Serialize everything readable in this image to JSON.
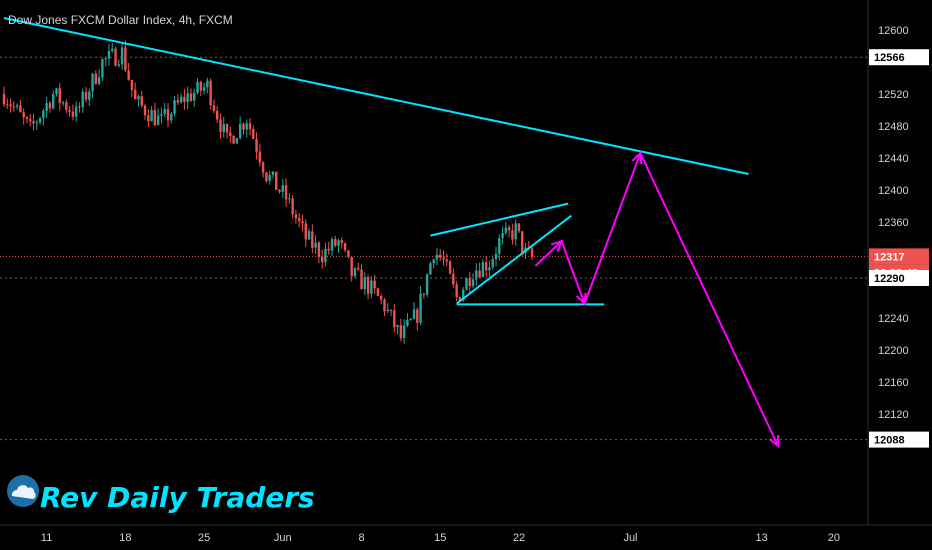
{
  "chart_data": {
    "type": "candlestick",
    "title": "Dow Jones FXCM Dollar Index, 4h, FXCM",
    "brand": "Rev Daily Traders",
    "brand_icon": "cloud-logo-icon",
    "ylim": [
      12040,
      12640
    ],
    "y_ticks": [
      12600,
      12520,
      12480,
      12440,
      12400,
      12360,
      12240,
      12200,
      12160,
      12120
    ],
    "x_ticks": [
      "11",
      "18",
      "25",
      "Jun",
      "8",
      "15",
      "22",
      "Jul",
      "13",
      "20"
    ],
    "price_badges": [
      {
        "label": "12566",
        "value": 12566,
        "style": "white"
      },
      {
        "label": "12317",
        "value": 12317,
        "style": "red"
      },
      {
        "label": "02:03:43",
        "value": 12297,
        "style": "red"
      },
      {
        "label": "12290",
        "value": 12290,
        "style": "white"
      },
      {
        "label": "12088",
        "value": 12088,
        "style": "white"
      }
    ],
    "current_price": 12317,
    "colors": {
      "background": "#000000",
      "up": "#26a69a",
      "down": "#ef5350",
      "trendline": "#00e5ff",
      "projection": "#ff00ff",
      "price_line": "#ef5350",
      "grid_dotted": "#666666"
    },
    "trend_lines": [
      {
        "name": "long-downtrend",
        "from": [
          0,
          12615
        ],
        "to": [
          227,
          12420
        ]
      },
      {
        "name": "wedge-upper",
        "from": [
          130,
          12343
        ],
        "to": [
          172,
          12383
        ]
      },
      {
        "name": "wedge-lower",
        "from": [
          138,
          12258
        ],
        "to": [
          173,
          12368
        ]
      },
      {
        "name": "support",
        "from": [
          138,
          12257
        ],
        "to": [
          183,
          12257
        ]
      }
    ],
    "projection_path": [
      [
        162,
        12305
      ],
      [
        170,
        12336
      ],
      [
        177,
        12258
      ],
      [
        194,
        12446
      ],
      [
        236,
        12080
      ]
    ]
  }
}
